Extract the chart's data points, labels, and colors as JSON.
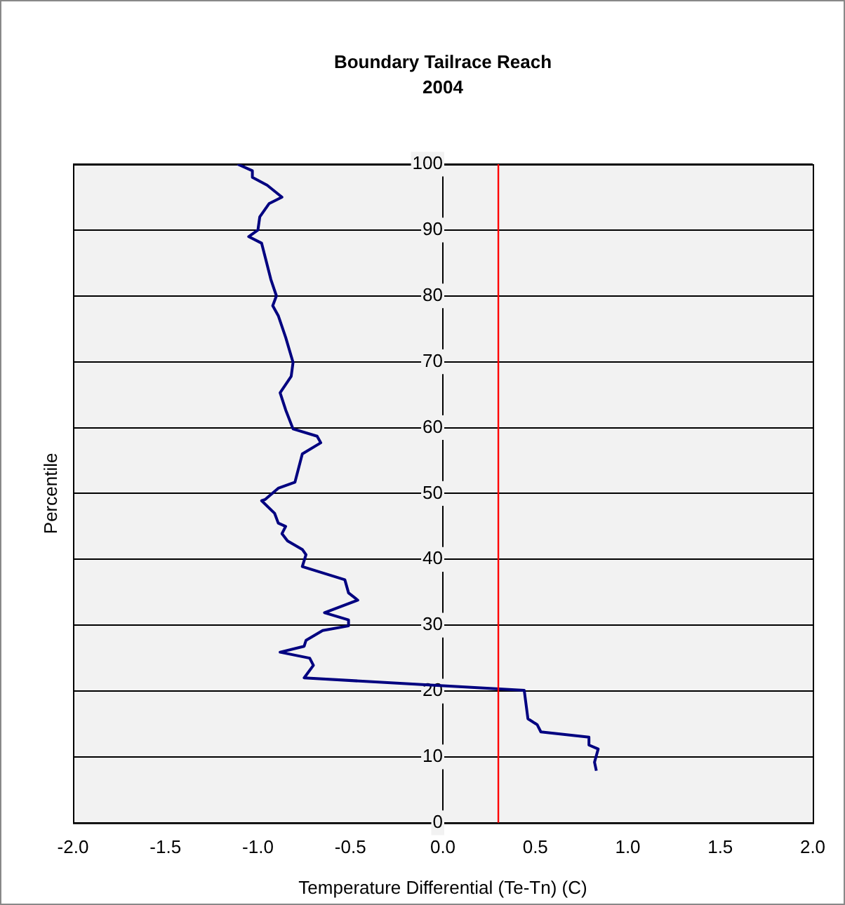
{
  "chart_data": {
    "type": "line",
    "title": "Boundary Tailrace Reach",
    "subtitle": "2004",
    "xlabel": "Temperature Differential (Te-Tn) (C)",
    "ylabel": "Percentile",
    "xlim": [
      -2,
      2
    ],
    "xticks": [
      {
        "value": -2,
        "label": "-2.0"
      },
      {
        "value": -1.5,
        "label": "-1.5"
      },
      {
        "value": -1,
        "label": "-1.0"
      },
      {
        "value": -0.5,
        "label": "-0.5"
      },
      {
        "value": 0,
        "label": "0.0"
      },
      {
        "value": 0.5,
        "label": "0.5"
      },
      {
        "value": 1,
        "label": "1.0"
      },
      {
        "value": 1.5,
        "label": "1.5"
      },
      {
        "value": 2,
        "label": "2.0"
      }
    ],
    "ylim": [
      0,
      100
    ],
    "yticks": [
      0,
      10,
      20,
      30,
      40,
      50,
      60,
      70,
      80,
      90,
      100
    ],
    "grid": "y",
    "marker": "none",
    "line_style": "solid",
    "series": [
      {
        "color": "#000080",
        "x": [
          -1.11,
          -1.03,
          -1.03,
          -0.95,
          -0.87,
          -0.94,
          -0.99,
          -1.0,
          -1.05,
          -0.98,
          -0.96,
          -0.93,
          -0.9,
          -0.92,
          -0.89,
          -0.85,
          -0.81,
          -0.82,
          -0.88,
          -0.85,
          -0.81,
          -0.68,
          -0.66,
          -0.76,
          -0.8,
          -0.89,
          -0.96,
          -0.98,
          -0.91,
          -0.89,
          -0.85,
          -0.87,
          -0.84,
          -0.76,
          -0.74,
          -0.76,
          -0.53,
          -0.51,
          -0.46,
          -0.64,
          -0.51,
          -0.51,
          -0.65,
          -0.74,
          -0.75,
          -0.88,
          -0.72,
          -0.7,
          -0.75,
          0.44,
          0.46,
          0.51,
          0.53,
          0.79,
          0.79,
          0.84,
          0.82,
          0.83
        ],
        "values": [
          100,
          99,
          98,
          96.8,
          95,
          94,
          92,
          90,
          89,
          88,
          85.8,
          82.5,
          80,
          78.5,
          77,
          73.7,
          69.9,
          67.8,
          65.3,
          62.7,
          59.8,
          58.7,
          57.7,
          56,
          51.7,
          50.8,
          49.1,
          48.9,
          47,
          45.5,
          45,
          43.9,
          42.8,
          41.5,
          40.7,
          38.9,
          36.9,
          34.9,
          33.8,
          31.9,
          30.8,
          29.9,
          29.2,
          27.7,
          26.8,
          25.9,
          25,
          23.9,
          22,
          20.1,
          15.8,
          14.9,
          13.8,
          13,
          11.8,
          11.2,
          9.2,
          7.9
        ]
      }
    ],
    "ref_lines": [
      {
        "axis": "x",
        "value": 0.3,
        "color": "#ff0000"
      }
    ]
  }
}
